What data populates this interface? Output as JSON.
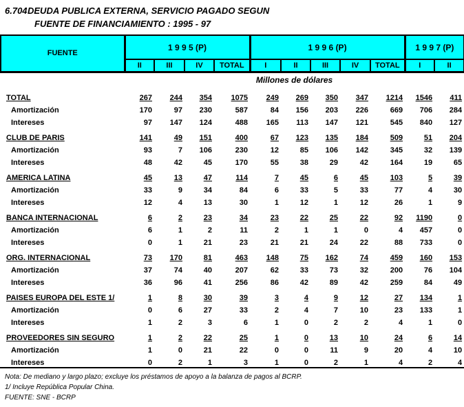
{
  "colors": {
    "header_bg": "#00ffff",
    "border": "#000000",
    "text": "#000000",
    "page_bg": "#ffffff"
  },
  "title": {
    "index": "6.704",
    "line1": "DEUDA PUBLICA EXTERNA, SERVICIO PAGADO SEGUN",
    "line2": "FUENTE DE FINANCIAMIENTO : 1995 - 97"
  },
  "table": {
    "corner_label": "FUENTE",
    "units_label": "Millones de dólares",
    "year_groups": [
      {
        "label": "1 9 9 5 (P)",
        "quarters": [
          "II",
          "III",
          "IV",
          "TOTAL"
        ]
      },
      {
        "label": "1 9 9 6 (P)",
        "quarters": [
          "I",
          "II",
          "III",
          "IV",
          "TOTAL"
        ]
      },
      {
        "label": "1 9 9 7 (P)",
        "quarters": [
          "I",
          "II"
        ]
      }
    ],
    "sections": [
      {
        "name": "TOTAL",
        "values": [
          267,
          244,
          354,
          1075,
          249,
          269,
          350,
          347,
          1214,
          1546,
          411
        ],
        "rows": [
          {
            "label": "Amortización",
            "values": [
              170,
              97,
              230,
              587,
              84,
              156,
              203,
              226,
              669,
              706,
              284
            ]
          },
          {
            "label": "Intereses",
            "values": [
              97,
              147,
              124,
              488,
              165,
              113,
              147,
              121,
              545,
              840,
              127
            ]
          }
        ]
      },
      {
        "name": "CLUB DE PARIS",
        "values": [
          141,
          49,
          151,
          400,
          67,
          123,
          135,
          184,
          509,
          51,
          204
        ],
        "rows": [
          {
            "label": "Amortización",
            "values": [
              93,
              7,
              106,
              230,
              12,
              85,
              106,
              142,
              345,
              32,
              139
            ]
          },
          {
            "label": "Intereses",
            "values": [
              48,
              42,
              45,
              170,
              55,
              38,
              29,
              42,
              164,
              19,
              65
            ]
          }
        ]
      },
      {
        "name": "AMERICA LATINA",
        "values": [
          45,
          13,
          47,
          114,
          7,
          45,
          6,
          45,
          103,
          5,
          39
        ],
        "rows": [
          {
            "label": "Amortización",
            "values": [
              33,
              9,
              34,
              84,
              6,
              33,
              5,
              33,
              77,
              4,
              30
            ]
          },
          {
            "label": "Intereses",
            "values": [
              12,
              4,
              13,
              30,
              1,
              12,
              1,
              12,
              26,
              1,
              9
            ]
          }
        ]
      },
      {
        "name": "BANCA INTERNACIONAL",
        "values": [
          6,
          2,
          23,
          34,
          23,
          22,
          25,
          22,
          92,
          1190,
          0
        ],
        "rows": [
          {
            "label": "Amortización",
            "values": [
              6,
              1,
              2,
              11,
              2,
              1,
              1,
              0,
              4,
              457,
              0
            ]
          },
          {
            "label": "Intereses",
            "values": [
              0,
              1,
              21,
              23,
              21,
              21,
              24,
              22,
              88,
              733,
              0
            ]
          }
        ]
      },
      {
        "name": "ORG. INTERNACIONAL",
        "values": [
          73,
          170,
          81,
          463,
          148,
          75,
          162,
          74,
          459,
          160,
          153
        ],
        "rows": [
          {
            "label": "Amortización",
            "values": [
              37,
              74,
              40,
              207,
              62,
              33,
              73,
              32,
              200,
              76,
              104
            ]
          },
          {
            "label": "Intereses",
            "values": [
              36,
              96,
              41,
              256,
              86,
              42,
              89,
              42,
              259,
              84,
              49
            ]
          }
        ]
      },
      {
        "name": "PAISES EUROPA DEL ESTE  1/",
        "values": [
          1,
          8,
          30,
          39,
          3,
          4,
          9,
          12,
          27,
          134,
          1
        ],
        "rows": [
          {
            "label": "Amortización",
            "values": [
              0,
              6,
              27,
              33,
              2,
              4,
              7,
              10,
              23,
              133,
              1
            ]
          },
          {
            "label": "Intereses",
            "values": [
              1,
              2,
              3,
              6,
              1,
              0,
              2,
              2,
              4,
              1,
              0
            ]
          }
        ]
      },
      {
        "name": "PROVEEDORES SIN SEGURO",
        "values": [
          1,
          2,
          22,
          25,
          1,
          0,
          13,
          10,
          24,
          6,
          14
        ],
        "rows": [
          {
            "label": "Amortización",
            "values": [
              1,
              0,
              21,
              22,
              0,
              0,
              11,
              9,
              20,
              4,
              10
            ]
          },
          {
            "label": "Intereses",
            "values": [
              0,
              2,
              1,
              3,
              1,
              0,
              2,
              1,
              4,
              2,
              4
            ]
          }
        ]
      }
    ]
  },
  "footnotes": [
    "Nota: De mediano y largo plazo; excluye los préstamos de apoyo a la balanza de pagos al BCRP.",
    "1/ Incluye República Popular China.",
    "FUENTE: SNE - BCRP"
  ]
}
